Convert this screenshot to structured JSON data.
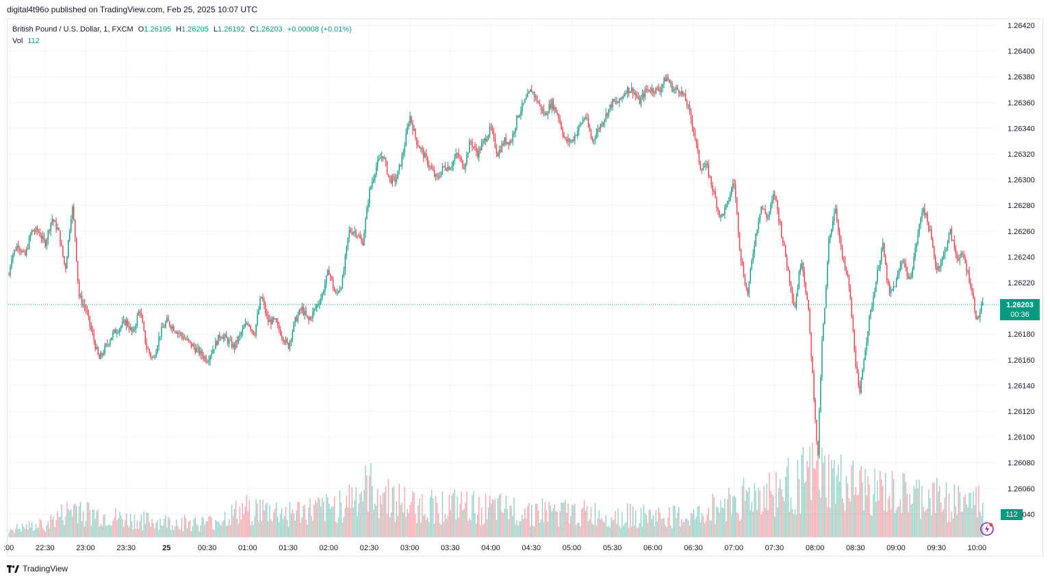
{
  "header": {
    "publish_text": "digital4t96o published on TradingView.com, Feb 25, 2025 10:07 UTC"
  },
  "legend": {
    "symbol": "British Pound / U.S. Dollar, 1, FXCM",
    "o_label": "O",
    "o": "1.26195",
    "h_label": "H",
    "h": "1.26205",
    "l_label": "L",
    "l": "1.26192",
    "c_label": "C",
    "c": "1.26203",
    "change": "+0.00008 (+0.01%)",
    "vol_label": "Vol",
    "vol": "112"
  },
  "price_tag": {
    "price": "1.26203",
    "countdown": "00:36"
  },
  "vol_tag": {
    "value": "112"
  },
  "footer": {
    "brand": "TradingView"
  },
  "colors": {
    "up": "#089981",
    "down": "#f23645",
    "grid": "#f0f3fa",
    "axis_text": "#131722"
  },
  "chart_data": {
    "type": "candlestick",
    "timeframe": "1 minute",
    "y_axis": {
      "ticks": [
        "1.26420",
        "1.26400",
        "1.26380",
        "1.26360",
        "1.26340",
        "1.26320",
        "1.26300",
        "1.26280",
        "1.26260",
        "1.26240",
        "1.26220",
        "1.26200",
        "1.26180",
        "1.26160",
        "1.26140",
        "1.26120",
        "1.26100",
        "1.26080",
        "1.26060",
        "1.26040"
      ],
      "range": [
        1.2603,
        1.2643
      ]
    },
    "x_axis": {
      "ticks": [
        ":00",
        "22:30",
        "23:00",
        "23:30",
        "25",
        "00:30",
        "01:00",
        "01:30",
        "02:00",
        "02:30",
        "03:00",
        "03:30",
        "04:00",
        "04:30",
        "05:00",
        "05:30",
        "06:00",
        "06:30",
        "07:00",
        "07:30",
        "08:00",
        "08:30",
        "09:00",
        "09:30",
        "10:00"
      ]
    },
    "last_price": 1.26203,
    "price_path": [
      {
        "t": "22:00",
        "p": 1.262
      },
      {
        "t": "22:05",
        "p": 1.2624
      },
      {
        "t": "22:10",
        "p": 1.2625
      },
      {
        "t": "22:15",
        "p": 1.2624
      },
      {
        "t": "22:20",
        "p": 1.2626
      },
      {
        "t": "22:25",
        "p": 1.2626
      },
      {
        "t": "22:30",
        "p": 1.2625
      },
      {
        "t": "22:35",
        "p": 1.2627
      },
      {
        "t": "22:40",
        "p": 1.2626
      },
      {
        "t": "22:45",
        "p": 1.2623
      },
      {
        "t": "22:50",
        "p": 1.2628
      },
      {
        "t": "22:52",
        "p": 1.2626
      },
      {
        "t": "22:55",
        "p": 1.2621
      },
      {
        "t": "23:00",
        "p": 1.262
      },
      {
        "t": "23:05",
        "p": 1.2618
      },
      {
        "t": "23:10",
        "p": 1.2616
      },
      {
        "t": "23:15",
        "p": 1.2617
      },
      {
        "t": "23:20",
        "p": 1.2618
      },
      {
        "t": "23:30",
        "p": 1.2619
      },
      {
        "t": "23:35",
        "p": 1.2618
      },
      {
        "t": "23:40",
        "p": 1.262
      },
      {
        "t": "23:45",
        "p": 1.2617
      },
      {
        "t": "23:50",
        "p": 1.2616
      },
      {
        "t": "23:55",
        "p": 1.2618
      },
      {
        "t": "00:00",
        "p": 1.2619
      },
      {
        "t": "00:10",
        "p": 1.2618
      },
      {
        "t": "00:20",
        "p": 1.2617
      },
      {
        "t": "00:30",
        "p": 1.2616
      },
      {
        "t": "00:40",
        "p": 1.2618
      },
      {
        "t": "00:50",
        "p": 1.2617
      },
      {
        "t": "01:00",
        "p": 1.2619
      },
      {
        "t": "01:05",
        "p": 1.2618
      },
      {
        "t": "01:10",
        "p": 1.2621
      },
      {
        "t": "01:15",
        "p": 1.2619
      },
      {
        "t": "01:20",
        "p": 1.2619
      },
      {
        "t": "01:25",
        "p": 1.2618
      },
      {
        "t": "01:30",
        "p": 1.2617
      },
      {
        "t": "01:35",
        "p": 1.2619
      },
      {
        "t": "01:40",
        "p": 1.262
      },
      {
        "t": "01:45",
        "p": 1.2619
      },
      {
        "t": "01:50",
        "p": 1.262
      },
      {
        "t": "01:55",
        "p": 1.2621
      },
      {
        "t": "02:00",
        "p": 1.2623
      },
      {
        "t": "02:05",
        "p": 1.2621
      },
      {
        "t": "02:10",
        "p": 1.2622
      },
      {
        "t": "02:15",
        "p": 1.2626
      },
      {
        "t": "02:20",
        "p": 1.2626
      },
      {
        "t": "02:25",
        "p": 1.2625
      },
      {
        "t": "02:30",
        "p": 1.2629
      },
      {
        "t": "02:35",
        "p": 1.2631
      },
      {
        "t": "02:40",
        "p": 1.2632
      },
      {
        "t": "02:45",
        "p": 1.263
      },
      {
        "t": "02:50",
        "p": 1.263
      },
      {
        "t": "02:55",
        "p": 1.2632
      },
      {
        "t": "03:00",
        "p": 1.2635
      },
      {
        "t": "03:05",
        "p": 1.2633
      },
      {
        "t": "03:10",
        "p": 1.2632
      },
      {
        "t": "03:15",
        "p": 1.2631
      },
      {
        "t": "03:20",
        "p": 1.263
      },
      {
        "t": "03:25",
        "p": 1.2631
      },
      {
        "t": "03:30",
        "p": 1.2631
      },
      {
        "t": "03:35",
        "p": 1.2632
      },
      {
        "t": "03:40",
        "p": 1.2631
      },
      {
        "t": "03:45",
        "p": 1.2633
      },
      {
        "t": "03:50",
        "p": 1.2632
      },
      {
        "t": "03:55",
        "p": 1.2633
      },
      {
        "t": "04:00",
        "p": 1.2634
      },
      {
        "t": "04:05",
        "p": 1.2632
      },
      {
        "t": "04:10",
        "p": 1.2633
      },
      {
        "t": "04:15",
        "p": 1.2633
      },
      {
        "t": "04:20",
        "p": 1.2635
      },
      {
        "t": "04:25",
        "p": 1.2636
      },
      {
        "t": "04:30",
        "p": 1.2637
      },
      {
        "t": "04:35",
        "p": 1.2636
      },
      {
        "t": "04:40",
        "p": 1.2635
      },
      {
        "t": "04:45",
        "p": 1.2636
      },
      {
        "t": "04:50",
        "p": 1.2635
      },
      {
        "t": "04:55",
        "p": 1.2633
      },
      {
        "t": "05:00",
        "p": 1.2633
      },
      {
        "t": "05:05",
        "p": 1.2634
      },
      {
        "t": "05:10",
        "p": 1.2635
      },
      {
        "t": "05:15",
        "p": 1.2633
      },
      {
        "t": "05:20",
        "p": 1.2634
      },
      {
        "t": "05:25",
        "p": 1.2635
      },
      {
        "t": "05:30",
        "p": 1.2636
      },
      {
        "t": "05:35",
        "p": 1.2636
      },
      {
        "t": "05:40",
        "p": 1.2637
      },
      {
        "t": "05:45",
        "p": 1.2637
      },
      {
        "t": "05:50",
        "p": 1.2636
      },
      {
        "t": "05:55",
        "p": 1.2637
      },
      {
        "t": "06:00",
        "p": 1.2637
      },
      {
        "t": "06:05",
        "p": 1.2637
      },
      {
        "t": "06:10",
        "p": 1.2638
      },
      {
        "t": "06:15",
        "p": 1.2637
      },
      {
        "t": "06:20",
        "p": 1.2637
      },
      {
        "t": "06:25",
        "p": 1.2636
      },
      {
        "t": "06:30",
        "p": 1.2634
      },
      {
        "t": "06:35",
        "p": 1.2631
      },
      {
        "t": "06:40",
        "p": 1.2631
      },
      {
        "t": "06:45",
        "p": 1.2629
      },
      {
        "t": "06:50",
        "p": 1.2627
      },
      {
        "t": "06:55",
        "p": 1.2628
      },
      {
        "t": "07:00",
        "p": 1.263
      },
      {
        "t": "07:05",
        "p": 1.2624
      },
      {
        "t": "07:10",
        "p": 1.2621
      },
      {
        "t": "07:15",
        "p": 1.2625
      },
      {
        "t": "07:20",
        "p": 1.2628
      },
      {
        "t": "07:25",
        "p": 1.2627
      },
      {
        "t": "07:30",
        "p": 1.2629
      },
      {
        "t": "07:35",
        "p": 1.2626
      },
      {
        "t": "07:40",
        "p": 1.2623
      },
      {
        "t": "07:45",
        "p": 1.262
      },
      {
        "t": "07:50",
        "p": 1.2624
      },
      {
        "t": "07:55",
        "p": 1.262
      },
      {
        "t": "08:00",
        "p": 1.2612
      },
      {
        "t": "08:02",
        "p": 1.2608
      },
      {
        "t": "08:05",
        "p": 1.2617
      },
      {
        "t": "08:08",
        "p": 1.2621
      },
      {
        "t": "08:10",
        "p": 1.2625
      },
      {
        "t": "08:15",
        "p": 1.2628
      },
      {
        "t": "08:20",
        "p": 1.2624
      },
      {
        "t": "08:25",
        "p": 1.2622
      },
      {
        "t": "08:30",
        "p": 1.2616
      },
      {
        "t": "08:33",
        "p": 1.2613
      },
      {
        "t": "08:36",
        "p": 1.2616
      },
      {
        "t": "08:40",
        "p": 1.2619
      },
      {
        "t": "08:45",
        "p": 1.2622
      },
      {
        "t": "08:50",
        "p": 1.2625
      },
      {
        "t": "08:55",
        "p": 1.2621
      },
      {
        "t": "09:00",
        "p": 1.2622
      },
      {
        "t": "09:05",
        "p": 1.2624
      },
      {
        "t": "09:10",
        "p": 1.2622
      },
      {
        "t": "09:15",
        "p": 1.2625
      },
      {
        "t": "09:20",
        "p": 1.2628
      },
      {
        "t": "09:25",
        "p": 1.2626
      },
      {
        "t": "09:30",
        "p": 1.2623
      },
      {
        "t": "09:35",
        "p": 1.2624
      },
      {
        "t": "09:40",
        "p": 1.2626
      },
      {
        "t": "09:45",
        "p": 1.2624
      },
      {
        "t": "09:50",
        "p": 1.2624
      },
      {
        "t": "09:55",
        "p": 1.2622
      },
      {
        "t": "10:00",
        "p": 1.2619
      },
      {
        "t": "10:03",
        "p": 1.262
      },
      {
        "t": "10:05",
        "p": 1.26203
      }
    ],
    "volume": {
      "last": 112,
      "note": "",
      "profile": [
        {
          "t": "22:00",
          "v": 10
        },
        {
          "t": "22:30",
          "v": 18
        },
        {
          "t": "22:55",
          "v": 45
        },
        {
          "t": "23:00",
          "v": 35
        },
        {
          "t": "23:30",
          "v": 25
        },
        {
          "t": "00:00",
          "v": 22
        },
        {
          "t": "00:30",
          "v": 20
        },
        {
          "t": "01:00",
          "v": 40
        },
        {
          "t": "01:30",
          "v": 35
        },
        {
          "t": "02:00",
          "v": 40
        },
        {
          "t": "02:30",
          "v": 70
        },
        {
          "t": "03:00",
          "v": 45
        },
        {
          "t": "03:30",
          "v": 45
        },
        {
          "t": "04:00",
          "v": 40
        },
        {
          "t": "04:30",
          "v": 38
        },
        {
          "t": "05:00",
          "v": 35
        },
        {
          "t": "05:30",
          "v": 32
        },
        {
          "t": "06:00",
          "v": 30
        },
        {
          "t": "06:30",
          "v": 28
        },
        {
          "t": "07:00",
          "v": 55
        },
        {
          "t": "07:30",
          "v": 65
        },
        {
          "t": "08:00",
          "v": 90
        },
        {
          "t": "08:30",
          "v": 70
        },
        {
          "t": "09:00",
          "v": 60
        },
        {
          "t": "09:30",
          "v": 55
        },
        {
          "t": "10:00",
          "v": 50
        }
      ]
    }
  }
}
